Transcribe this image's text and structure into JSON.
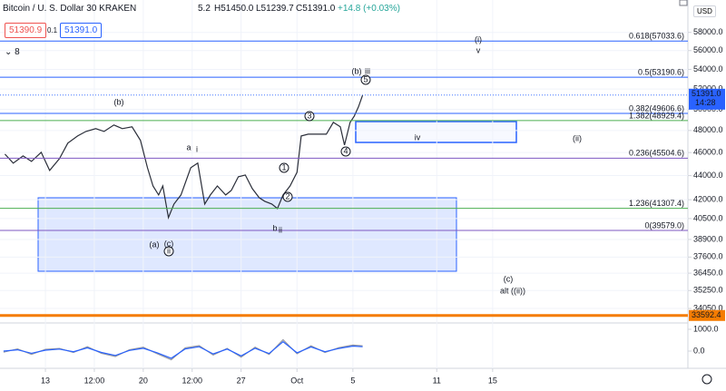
{
  "chart_data": [
    {
      "type": "line",
      "title": "Bitcoin / U. S. Dollar  30  KRAKEN",
      "ohlc": [
        "5.2",
        "H51450.0",
        "L51239.7",
        "C51391.0",
        "+14.8 (+0.03%)"
      ],
      "quote": {
        "bid": "51390.9",
        "spread": "0.1",
        "ask": "51391.0"
      },
      "indicators_count": "8",
      "currency": "USD",
      "x": [
        10.1,
        10.7,
        11.4,
        12.0,
        12.7,
        13.3,
        14.0,
        14.6,
        15.3,
        15.9,
        16.6,
        17.2,
        17.9,
        18.5,
        19.2,
        19.8,
        20.3,
        20.7,
        21.1,
        21.4,
        21.8,
        22.2,
        22.7,
        23.4,
        23.9,
        24.4,
        24.8,
        25.3,
        25.9,
        26.3,
        26.8,
        27.3,
        27.8,
        28.3,
        28.7,
        29.2,
        29.6,
        30.0,
        30.5,
        31.0,
        31.3,
        31.8,
        32.5,
        33.1,
        33.6,
        34.1,
        34.4,
        34.8,
        35.1,
        35.4,
        35.7
      ],
      "series": [
        {
          "color": "#2a2e39",
          "values": [
            45860,
            45070,
            45700,
            45220,
            46020,
            44440,
            45460,
            46840,
            47490,
            47910,
            48170,
            47910,
            48510,
            48170,
            48340,
            47090,
            44670,
            43130,
            42390,
            43130,
            40570,
            41650,
            42390,
            44670,
            45070,
            41650,
            42390,
            43130,
            42390,
            42760,
            43900,
            44050,
            42910,
            42160,
            41870,
            41650,
            41290,
            42390,
            43130,
            44280,
            47490,
            47660,
            47660,
            47660,
            48760,
            48340,
            46670,
            48760,
            49360,
            50240,
            51391
          ]
        }
      ],
      "xlim": [
        9.75,
        58.97
      ],
      "xticks": [
        13,
        {
          "value": 16.5,
          "label": "12:00"
        },
        20,
        {
          "value": 23.5,
          "label": "12:00"
        },
        27,
        {
          "value": 31,
          "label": "Oct"
        },
        {
          "value": 35,
          "label": "5"
        },
        {
          "value": 41,
          "label": "11"
        },
        {
          "value": 45,
          "label": "15"
        }
      ],
      "ylim": [
        33170,
        61740
      ],
      "log_y": true,
      "grid": true,
      "yticks": [
        {
          "value": 58000,
          "label": "58000.0"
        },
        {
          "value": 56000,
          "label": "56000.0"
        },
        {
          "value": 54000,
          "label": "54000.0"
        },
        {
          "value": 52000,
          "label": "52000.0"
        },
        {
          "value": 50000,
          "label": "50000.0"
        },
        {
          "value": 48000,
          "label": "48000.0"
        },
        {
          "value": 46000,
          "label": "46000.0"
        },
        {
          "value": 44000,
          "label": "44000.0"
        },
        {
          "value": 42000,
          "label": "42000.0"
        },
        {
          "value": 40500,
          "label": "40500.0"
        },
        {
          "value": 38900,
          "label": "38900.0"
        },
        {
          "value": 37600,
          "label": "37600.0"
        },
        {
          "value": 36450,
          "label": "36450.0"
        },
        {
          "value": 35250,
          "label": "35250.0"
        },
        {
          "value": 34050,
          "label": "34050.0"
        }
      ],
      "fib_levels": [
        {
          "value": 57033.6,
          "label": "0.618(57033.6)",
          "color": "#2962ff"
        },
        {
          "value": 53190.6,
          "label": "0.5(53190.6)",
          "color": "#2962ff"
        },
        {
          "value": 49606.6,
          "label": "0.382(49606.6)",
          "color": "#2962ff"
        },
        {
          "value": 48929.4,
          "label": "1.382(48929.4)",
          "color": "#4caf50"
        },
        {
          "value": 45504.6,
          "label": "0.236(45504.6)",
          "color": "#7e57c2"
        },
        {
          "value": 41307.4,
          "label": "1.236(41307.4)",
          "color": "#4caf50"
        },
        {
          "value": 39579.0,
          "label": "0(39579.0)",
          "color": "#7e57c2"
        }
      ],
      "price_line": {
        "value": 33592.4,
        "label": "33592.4",
        "color": "#f57c00"
      },
      "last_price": {
        "value": 51391.0,
        "label": "51391.0",
        "countdown": "14:28",
        "color": "#2962ff"
      },
      "wave_labels": [
        {
          "text": "(i)",
          "color": "#131722"
        },
        {
          "text": "v",
          "color": "#131722"
        },
        {
          "text": "(b)",
          "color": "#f57c00"
        },
        {
          "text": "iii",
          "color": "#131722"
        },
        {
          "text": "5",
          "color": "#131722",
          "circled": true
        },
        {
          "text": "(b)",
          "color": "#131722"
        },
        {
          "text": "3",
          "color": "#131722",
          "circled": true
        },
        {
          "text": "4",
          "color": "#131722",
          "circled": true
        },
        {
          "text": "iv",
          "color": "#131722"
        },
        {
          "text": "(ii)",
          "color": "#131722"
        },
        {
          "text": "a",
          "color": "#f57c00"
        },
        {
          "text": "i",
          "color": "#131722"
        },
        {
          "text": "1",
          "color": "#131722",
          "circled": true
        },
        {
          "text": "2",
          "color": "#131722",
          "circled": true
        },
        {
          "text": "(a)",
          "color": "#f57c00"
        },
        {
          "text": "(c)",
          "color": "#131722"
        },
        {
          "text": "ii",
          "color": "#131722",
          "circled": true
        },
        {
          "text": "b",
          "color": "#f57c00"
        },
        {
          "text": "ii",
          "color": "#131722"
        },
        {
          "text": "(c)",
          "color": "#f57c00"
        },
        {
          "text": "alt ((ii))",
          "color": "#f57c00"
        }
      ]
    },
    {
      "type": "line",
      "x": [
        10,
        11,
        12,
        13,
        14,
        15,
        16,
        17,
        18,
        19,
        20,
        21,
        22,
        23,
        24,
        25,
        26,
        27,
        28,
        29,
        30,
        31,
        32,
        33,
        34,
        35,
        35.7
      ],
      "series": [
        {
          "color": "#9598a1",
          "values": [
            -50,
            100,
            -150,
            80,
            120,
            -60,
            200,
            -100,
            -250,
            60,
            180,
            -120,
            -400,
            150,
            250,
            -180,
            120,
            -280,
            180,
            -150,
            520,
            -120,
            240,
            -60,
            160,
            280,
            240
          ]
        },
        {
          "color": "#2962ff",
          "values": [
            0,
            60,
            -100,
            40,
            90,
            -30,
            150,
            -60,
            -200,
            30,
            130,
            -80,
            -330,
            100,
            200,
            -130,
            90,
            -220,
            130,
            -110,
            430,
            -80,
            190,
            -30,
            120,
            230,
            200
          ]
        }
      ],
      "ylim": [
        -790,
        1290
      ],
      "yticks": [
        {
          "value": 1000,
          "label": "1000.0"
        },
        {
          "value": 0,
          "label": "0.0"
        }
      ]
    }
  ]
}
